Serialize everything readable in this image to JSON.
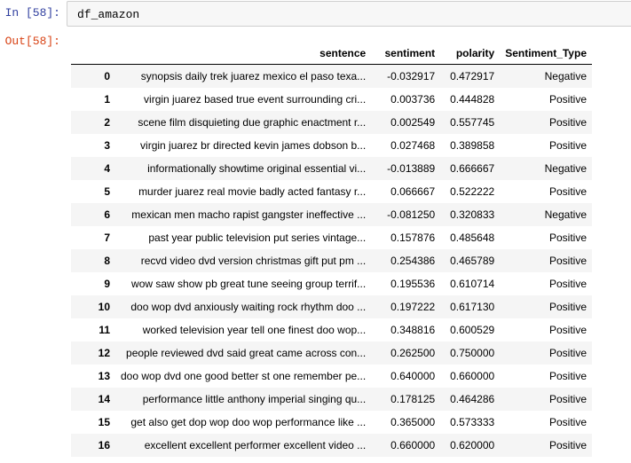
{
  "cell": {
    "in_prompt": "In [58]:",
    "out_prompt": "Out[58]:",
    "code": "df_amazon"
  },
  "table": {
    "columns": [
      "",
      "sentence",
      "sentiment",
      "polarity",
      "Sentiment_Type"
    ],
    "rows": [
      {
        "index": "0",
        "sentence": "synopsis daily trek juarez mexico el paso texa...",
        "sentiment": "-0.032917",
        "polarity": "0.472917",
        "type": "Negative"
      },
      {
        "index": "1",
        "sentence": "virgin juarez based true event surrounding cri...",
        "sentiment": "0.003736",
        "polarity": "0.444828",
        "type": "Positive"
      },
      {
        "index": "2",
        "sentence": "scene film disquieting due graphic enactment r...",
        "sentiment": "0.002549",
        "polarity": "0.557745",
        "type": "Positive"
      },
      {
        "index": "3",
        "sentence": "virgin juarez br directed kevin james dobson b...",
        "sentiment": "0.027468",
        "polarity": "0.389858",
        "type": "Positive"
      },
      {
        "index": "4",
        "sentence": "informationally showtime original essential vi...",
        "sentiment": "-0.013889",
        "polarity": "0.666667",
        "type": "Negative"
      },
      {
        "index": "5",
        "sentence": "murder juarez real movie badly acted fantasy r...",
        "sentiment": "0.066667",
        "polarity": "0.522222",
        "type": "Positive"
      },
      {
        "index": "6",
        "sentence": "mexican men macho rapist gangster ineffective ...",
        "sentiment": "-0.081250",
        "polarity": "0.320833",
        "type": "Negative"
      },
      {
        "index": "7",
        "sentence": "past year public television put series vintage...",
        "sentiment": "0.157876",
        "polarity": "0.485648",
        "type": "Positive"
      },
      {
        "index": "8",
        "sentence": "recvd video dvd version christmas gift put pm ...",
        "sentiment": "0.254386",
        "polarity": "0.465789",
        "type": "Positive"
      },
      {
        "index": "9",
        "sentence": "wow saw show pb great tune seeing group terrif...",
        "sentiment": "0.195536",
        "polarity": "0.610714",
        "type": "Positive"
      },
      {
        "index": "10",
        "sentence": "doo wop dvd anxiously waiting rock rhythm doo ...",
        "sentiment": "0.197222",
        "polarity": "0.617130",
        "type": "Positive"
      },
      {
        "index": "11",
        "sentence": "worked television year tell one finest doo wop...",
        "sentiment": "0.348816",
        "polarity": "0.600529",
        "type": "Positive"
      },
      {
        "index": "12",
        "sentence": "people reviewed dvd said great came across con...",
        "sentiment": "0.262500",
        "polarity": "0.750000",
        "type": "Positive"
      },
      {
        "index": "13",
        "sentence": "doo wop dvd one good better st one remember pe...",
        "sentiment": "0.640000",
        "polarity": "0.660000",
        "type": "Positive"
      },
      {
        "index": "14",
        "sentence": "performance little anthony imperial singing qu...",
        "sentiment": "0.178125",
        "polarity": "0.464286",
        "type": "Positive"
      },
      {
        "index": "15",
        "sentence": "get also get dop wop doo wop performance like ...",
        "sentiment": "0.365000",
        "polarity": "0.573333",
        "type": "Positive"
      },
      {
        "index": "16",
        "sentence": "excellent excellent performer excellent video ...",
        "sentiment": "0.660000",
        "polarity": "0.620000",
        "type": "Positive"
      }
    ]
  }
}
